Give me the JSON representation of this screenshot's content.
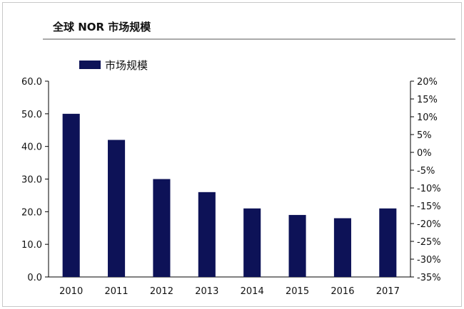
{
  "chart_data": {
    "type": "bar",
    "title": "全球 NOR 市场规模",
    "categories": [
      "2010",
      "2011",
      "2012",
      "2013",
      "2014",
      "2015",
      "2016",
      "2017"
    ],
    "series": [
      {
        "name": "市场规模",
        "values": [
          50.0,
          42.0,
          30.0,
          26.0,
          21.0,
          19.0,
          18.0,
          21.0
        ],
        "axis": "left"
      }
    ],
    "ylim": [
      0,
      60
    ],
    "yticks": [
      "0.0",
      "10.0",
      "20.0",
      "30.0",
      "40.0",
      "50.0",
      "60.0"
    ],
    "y2lim": [
      -35,
      20
    ],
    "y2ticks": [
      "-35%",
      "-30%",
      "-25%",
      "-20%",
      "-15%",
      "-10%",
      "-5%",
      "0%",
      "5%",
      "10%",
      "15%",
      "20%"
    ],
    "legend_position": "top-left",
    "grid": false,
    "colors": {
      "bar": "#0d1257",
      "axis": "#000000",
      "frame": "#c8c8c8",
      "divider": "#555555"
    }
  }
}
